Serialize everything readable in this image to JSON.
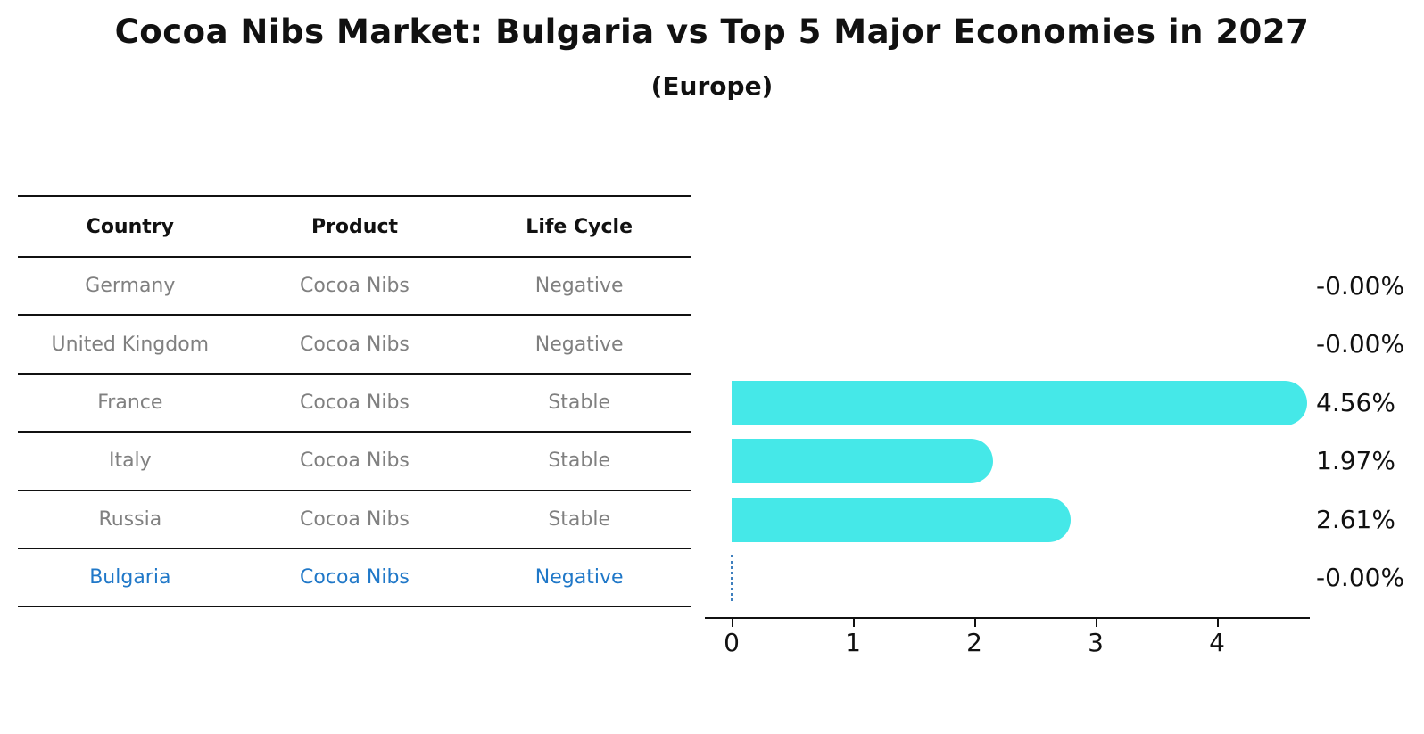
{
  "title": "Cocoa Nibs Market: Bulgaria vs Top 5 Major Economies in 2027",
  "subtitle": "(Europe)",
  "table": {
    "headers": [
      "Country",
      "Product",
      "Life Cycle"
    ],
    "rows": [
      {
        "country": "Germany",
        "product": "Cocoa Nibs",
        "life_cycle": "Negative",
        "highlight": false
      },
      {
        "country": "United Kingdom",
        "product": "Cocoa Nibs",
        "life_cycle": "Negative",
        "highlight": false
      },
      {
        "country": "France",
        "product": "Cocoa Nibs",
        "life_cycle": "Stable",
        "highlight": false
      },
      {
        "country": "Italy",
        "product": "Cocoa Nibs",
        "life_cycle": "Stable",
        "highlight": false
      },
      {
        "country": "Russia",
        "product": "Cocoa Nibs",
        "life_cycle": "Stable",
        "highlight": false
      },
      {
        "country": "Bulgaria",
        "product": "Cocoa Nibs",
        "life_cycle": "Negative",
        "highlight": true
      }
    ]
  },
  "chart_data": {
    "type": "bar",
    "orientation": "horizontal",
    "categories": [
      "Germany",
      "United Kingdom",
      "France",
      "Italy",
      "Russia",
      "Bulgaria"
    ],
    "values": [
      0,
      0,
      4.56,
      1.97,
      2.61,
      0
    ],
    "value_labels": [
      "-0.00%",
      "-0.00%",
      "4.56%",
      "1.97%",
      "2.61%",
      "-0.00%"
    ],
    "x_ticks": [
      "0",
      "1",
      "2",
      "3",
      "4"
    ],
    "xlim": [
      -0.23,
      4.79
    ],
    "grid": false,
    "legend": false,
    "highlight_index": 5,
    "zero_marker_style": "dotted-vertical-line",
    "bar_color": "#45E8E8",
    "highlight_text_color": "#2078C8",
    "zero_marker_color": "#3E7FBE",
    "muted_text_color": "#808080",
    "axis_text_color": "#111111"
  }
}
